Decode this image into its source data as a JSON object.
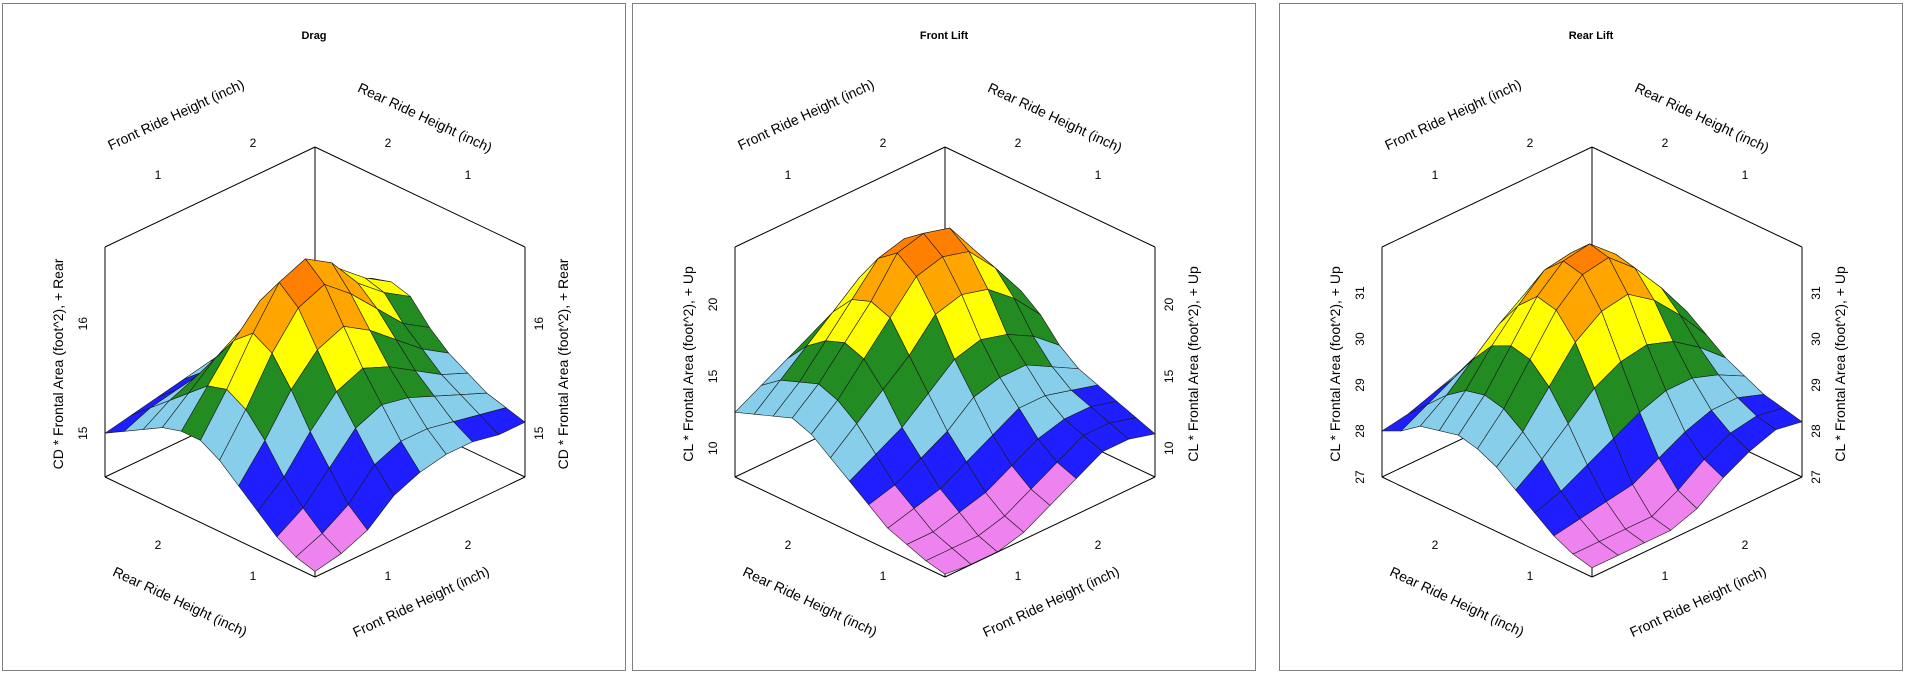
{
  "panels": [
    {
      "title": "Drag"
    },
    {
      "title": "Front Lift"
    },
    {
      "title": "Rear Lift"
    }
  ],
  "chart_data": [
    {
      "type": "surface3d",
      "title": "Drag",
      "axis_labels": {
        "front_back": "Front Ride Height (inch)",
        "rear_back": "Rear Ride Height (inch)",
        "rear_front": "Rear Ride Height (inch)",
        "front_front": "Front Ride Height (inch)",
        "z_left": "CD * Frontal Area (foot^2), + Rear",
        "z_right": "CD * Frontal Area (foot^2), + Rear"
      },
      "x_ticks": [
        "1",
        "2"
      ],
      "y_ticks": [
        "1",
        "2"
      ],
      "z_ticks": [
        "15",
        "16"
      ],
      "zlim": [
        14.6,
        16.7
      ],
      "colors": [
        "#ee82ee",
        "#1e1eff",
        "#87ceeb",
        "#228b22",
        "#ffff00",
        "#ffa500",
        "#ff7f00"
      ],
      "surface_description": "grid of z values over front ride height (rows) and rear ride height (cols)",
      "z": [
        [
          15.4,
          15.45,
          15.6,
          15.75,
          15.8,
          15.75,
          15.55,
          15.4,
          15.3,
          15.2,
          15.15,
          15.1
        ],
        [
          15.35,
          15.45,
          15.65,
          15.85,
          15.95,
          15.9,
          15.7,
          15.55,
          15.4,
          15.3,
          15.2,
          15.1
        ],
        [
          15.3,
          15.45,
          15.7,
          15.95,
          16.15,
          16.1,
          15.95,
          15.75,
          15.55,
          15.4,
          15.25,
          15.15
        ],
        [
          15.25,
          15.4,
          15.65,
          15.95,
          16.3,
          16.4,
          16.2,
          15.95,
          15.7,
          15.5,
          15.3,
          15.15
        ],
        [
          15.2,
          15.35,
          15.6,
          15.9,
          16.3,
          16.55,
          16.4,
          16.1,
          15.8,
          15.55,
          15.3,
          15.1
        ],
        [
          15.15,
          15.3,
          15.55,
          15.85,
          16.2,
          16.45,
          16.3,
          16.0,
          15.7,
          15.45,
          15.2,
          15.0
        ],
        [
          15.1,
          15.25,
          15.45,
          15.7,
          15.95,
          16.1,
          16.0,
          15.75,
          15.45,
          15.2,
          14.95,
          14.8
        ],
        [
          15.05,
          15.2,
          15.35,
          15.5,
          15.65,
          15.7,
          15.6,
          15.4,
          15.15,
          14.95,
          14.8,
          14.7
        ],
        [
          15.0,
          15.1,
          15.2,
          15.3,
          15.35,
          15.35,
          15.25,
          15.1,
          14.95,
          14.8,
          14.7,
          14.65
        ]
      ]
    },
    {
      "type": "surface3d",
      "title": "Front Lift",
      "axis_labels": {
        "front_back": "Front Ride Height (inch)",
        "rear_back": "Rear Ride Height (inch)",
        "rear_front": "Rear Ride Height (inch)",
        "front_front": "Front Ride Height (inch)",
        "z_left": "CL * Frontal Area (foot^2), + Up",
        "z_right": "CL * Frontal Area (foot^2), + Up"
      },
      "x_ticks": [
        "1",
        "2"
      ],
      "y_ticks": [
        "1",
        "2"
      ],
      "z_ticks": [
        "10",
        "15",
        "20"
      ],
      "zlim": [
        8,
        24
      ],
      "colors": [
        "#ee82ee",
        "#1e1eff",
        "#87ceeb",
        "#228b22",
        "#ffff00",
        "#ffa500",
        "#ff7f00"
      ],
      "z": [
        [
          14.0,
          15.5,
          16.5,
          17.0,
          16.5,
          15.5,
          14.0,
          13.0,
          12.5,
          12.0,
          11.5,
          11.0
        ],
        [
          15.5,
          17.5,
          19.0,
          19.5,
          19.0,
          17.5,
          15.5,
          14.0,
          13.0,
          12.5,
          12.0,
          11.5
        ],
        [
          16.5,
          19.0,
          21.0,
          22.0,
          21.0,
          19.0,
          16.5,
          15.0,
          13.5,
          12.5,
          12.0,
          11.5
        ],
        [
          17.0,
          19.5,
          21.5,
          22.5,
          21.5,
          19.5,
          17.0,
          15.0,
          13.5,
          12.0,
          11.0,
          10.5
        ],
        [
          16.5,
          19.0,
          21.0,
          22.0,
          21.0,
          19.0,
          16.5,
          14.5,
          12.5,
          11.0,
          10.0,
          9.5
        ],
        [
          15.5,
          17.5,
          19.0,
          19.5,
          19.0,
          17.0,
          15.0,
          13.0,
          11.5,
          10.0,
          9.0,
          8.5
        ],
        [
          14.5,
          16.0,
          17.0,
          17.5,
          17.0,
          15.5,
          13.5,
          12.0,
          10.5,
          9.5,
          8.5,
          8.0
        ],
        [
          13.5,
          14.5,
          15.0,
          15.5,
          15.0,
          14.0,
          12.5,
          11.0,
          10.0,
          9.0,
          8.5,
          8.0
        ],
        [
          12.5,
          13.0,
          13.5,
          14.0,
          13.5,
          12.5,
          11.5,
          10.5,
          9.5,
          9.0,
          8.5,
          8.2
        ]
      ]
    },
    {
      "type": "surface3d",
      "title": "Rear Lift",
      "axis_labels": {
        "front_back": "Front Ride Height (inch)",
        "rear_back": "Rear Ride Height (inch)",
        "rear_front": "Rear Ride Height (inch)",
        "front_front": "Front Ride Height (inch)",
        "z_left": "CL * Frontal Area (foot^2), + Up",
        "z_right": "CL * Frontal Area (foot^2), + Up"
      },
      "x_ticks": [
        "1",
        "2"
      ],
      "y_ticks": [
        "1",
        "2"
      ],
      "z_ticks": [
        "27",
        "28",
        "29",
        "30",
        "31"
      ],
      "zlim": [
        27,
        32
      ],
      "colors": [
        "#ee82ee",
        "#1e1eff",
        "#87ceeb",
        "#228b22",
        "#ffff00",
        "#ffa500",
        "#ff7f00"
      ],
      "z": [
        [
          28.2,
          28.6,
          29.0,
          29.3,
          29.5,
          29.4,
          29.1,
          28.8,
          28.6,
          28.4,
          28.3,
          28.2
        ],
        [
          28.5,
          29.0,
          29.6,
          30.0,
          30.3,
          30.2,
          29.8,
          29.3,
          28.9,
          28.6,
          28.4,
          28.3
        ],
        [
          28.7,
          29.3,
          30.1,
          30.7,
          31.0,
          30.9,
          30.4,
          29.7,
          29.1,
          28.6,
          28.3,
          28.1
        ],
        [
          28.8,
          29.5,
          30.4,
          31.1,
          31.5,
          31.4,
          30.8,
          29.9,
          29.1,
          28.4,
          28.0,
          27.8
        ],
        [
          28.7,
          29.4,
          30.3,
          31.0,
          31.4,
          31.3,
          30.7,
          29.8,
          28.9,
          28.1,
          27.6,
          27.4
        ],
        [
          28.5,
          29.1,
          29.9,
          30.5,
          30.9,
          30.8,
          30.3,
          29.5,
          28.6,
          27.8,
          27.3,
          27.2
        ],
        [
          28.3,
          28.8,
          29.4,
          29.9,
          30.1,
          30.0,
          29.6,
          29.0,
          28.3,
          27.7,
          27.3,
          27.2
        ],
        [
          28.1,
          28.5,
          28.9,
          29.2,
          29.3,
          29.2,
          28.9,
          28.5,
          28.0,
          27.6,
          27.3,
          27.2
        ],
        [
          28.0,
          28.2,
          28.5,
          28.6,
          28.7,
          28.6,
          28.4,
          28.1,
          27.8,
          27.5,
          27.3,
          27.2
        ]
      ]
    }
  ]
}
